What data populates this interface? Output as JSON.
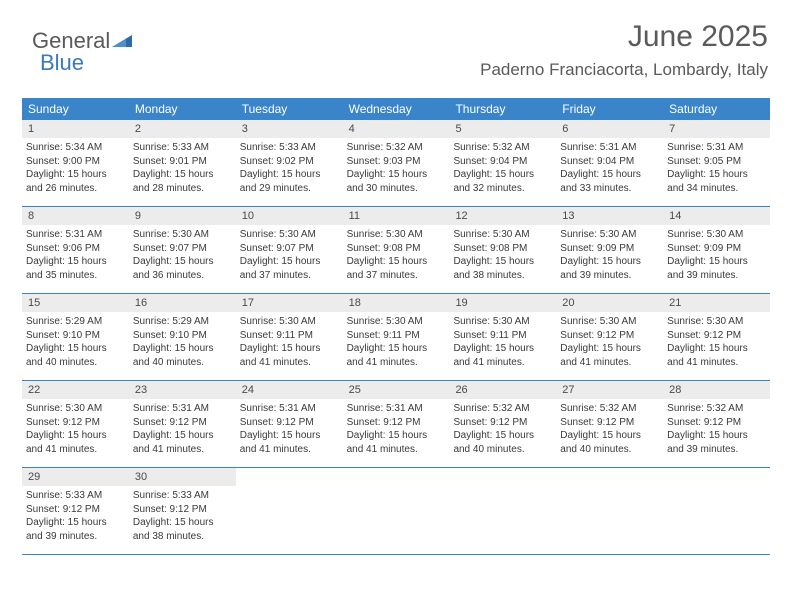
{
  "brand": {
    "part1": "General",
    "part2": "Blue"
  },
  "header": {
    "month": "June 2025",
    "location": "Paderno Franciacorta, Lombardy, Italy"
  },
  "colors": {
    "header_bg": "#3a85c9",
    "header_text": "#ffffff",
    "daynum_bg": "#ececec",
    "text": "#3a3a3a",
    "title": "#5a5a5a",
    "brand_blue": "#3a7ab8",
    "border": "#3a85c9"
  },
  "day_names": [
    "Sunday",
    "Monday",
    "Tuesday",
    "Wednesday",
    "Thursday",
    "Friday",
    "Saturday"
  ],
  "days": [
    {
      "n": 1,
      "sr": "5:34 AM",
      "ss": "9:00 PM",
      "dl": "15 hours and 26 minutes."
    },
    {
      "n": 2,
      "sr": "5:33 AM",
      "ss": "9:01 PM",
      "dl": "15 hours and 28 minutes."
    },
    {
      "n": 3,
      "sr": "5:33 AM",
      "ss": "9:02 PM",
      "dl": "15 hours and 29 minutes."
    },
    {
      "n": 4,
      "sr": "5:32 AM",
      "ss": "9:03 PM",
      "dl": "15 hours and 30 minutes."
    },
    {
      "n": 5,
      "sr": "5:32 AM",
      "ss": "9:04 PM",
      "dl": "15 hours and 32 minutes."
    },
    {
      "n": 6,
      "sr": "5:31 AM",
      "ss": "9:04 PM",
      "dl": "15 hours and 33 minutes."
    },
    {
      "n": 7,
      "sr": "5:31 AM",
      "ss": "9:05 PM",
      "dl": "15 hours and 34 minutes."
    },
    {
      "n": 8,
      "sr": "5:31 AM",
      "ss": "9:06 PM",
      "dl": "15 hours and 35 minutes."
    },
    {
      "n": 9,
      "sr": "5:30 AM",
      "ss": "9:07 PM",
      "dl": "15 hours and 36 minutes."
    },
    {
      "n": 10,
      "sr": "5:30 AM",
      "ss": "9:07 PM",
      "dl": "15 hours and 37 minutes."
    },
    {
      "n": 11,
      "sr": "5:30 AM",
      "ss": "9:08 PM",
      "dl": "15 hours and 37 minutes."
    },
    {
      "n": 12,
      "sr": "5:30 AM",
      "ss": "9:08 PM",
      "dl": "15 hours and 38 minutes."
    },
    {
      "n": 13,
      "sr": "5:30 AM",
      "ss": "9:09 PM",
      "dl": "15 hours and 39 minutes."
    },
    {
      "n": 14,
      "sr": "5:30 AM",
      "ss": "9:09 PM",
      "dl": "15 hours and 39 minutes."
    },
    {
      "n": 15,
      "sr": "5:29 AM",
      "ss": "9:10 PM",
      "dl": "15 hours and 40 minutes."
    },
    {
      "n": 16,
      "sr": "5:29 AM",
      "ss": "9:10 PM",
      "dl": "15 hours and 40 minutes."
    },
    {
      "n": 17,
      "sr": "5:30 AM",
      "ss": "9:11 PM",
      "dl": "15 hours and 41 minutes."
    },
    {
      "n": 18,
      "sr": "5:30 AM",
      "ss": "9:11 PM",
      "dl": "15 hours and 41 minutes."
    },
    {
      "n": 19,
      "sr": "5:30 AM",
      "ss": "9:11 PM",
      "dl": "15 hours and 41 minutes."
    },
    {
      "n": 20,
      "sr": "5:30 AM",
      "ss": "9:12 PM",
      "dl": "15 hours and 41 minutes."
    },
    {
      "n": 21,
      "sr": "5:30 AM",
      "ss": "9:12 PM",
      "dl": "15 hours and 41 minutes."
    },
    {
      "n": 22,
      "sr": "5:30 AM",
      "ss": "9:12 PM",
      "dl": "15 hours and 41 minutes."
    },
    {
      "n": 23,
      "sr": "5:31 AM",
      "ss": "9:12 PM",
      "dl": "15 hours and 41 minutes."
    },
    {
      "n": 24,
      "sr": "5:31 AM",
      "ss": "9:12 PM",
      "dl": "15 hours and 41 minutes."
    },
    {
      "n": 25,
      "sr": "5:31 AM",
      "ss": "9:12 PM",
      "dl": "15 hours and 41 minutes."
    },
    {
      "n": 26,
      "sr": "5:32 AM",
      "ss": "9:12 PM",
      "dl": "15 hours and 40 minutes."
    },
    {
      "n": 27,
      "sr": "5:32 AM",
      "ss": "9:12 PM",
      "dl": "15 hours and 40 minutes."
    },
    {
      "n": 28,
      "sr": "5:32 AM",
      "ss": "9:12 PM",
      "dl": "15 hours and 39 minutes."
    },
    {
      "n": 29,
      "sr": "5:33 AM",
      "ss": "9:12 PM",
      "dl": "15 hours and 39 minutes."
    },
    {
      "n": 30,
      "sr": "5:33 AM",
      "ss": "9:12 PM",
      "dl": "15 hours and 38 minutes."
    }
  ],
  "labels": {
    "sunrise": "Sunrise:",
    "sunset": "Sunset:",
    "daylight": "Daylight:"
  }
}
